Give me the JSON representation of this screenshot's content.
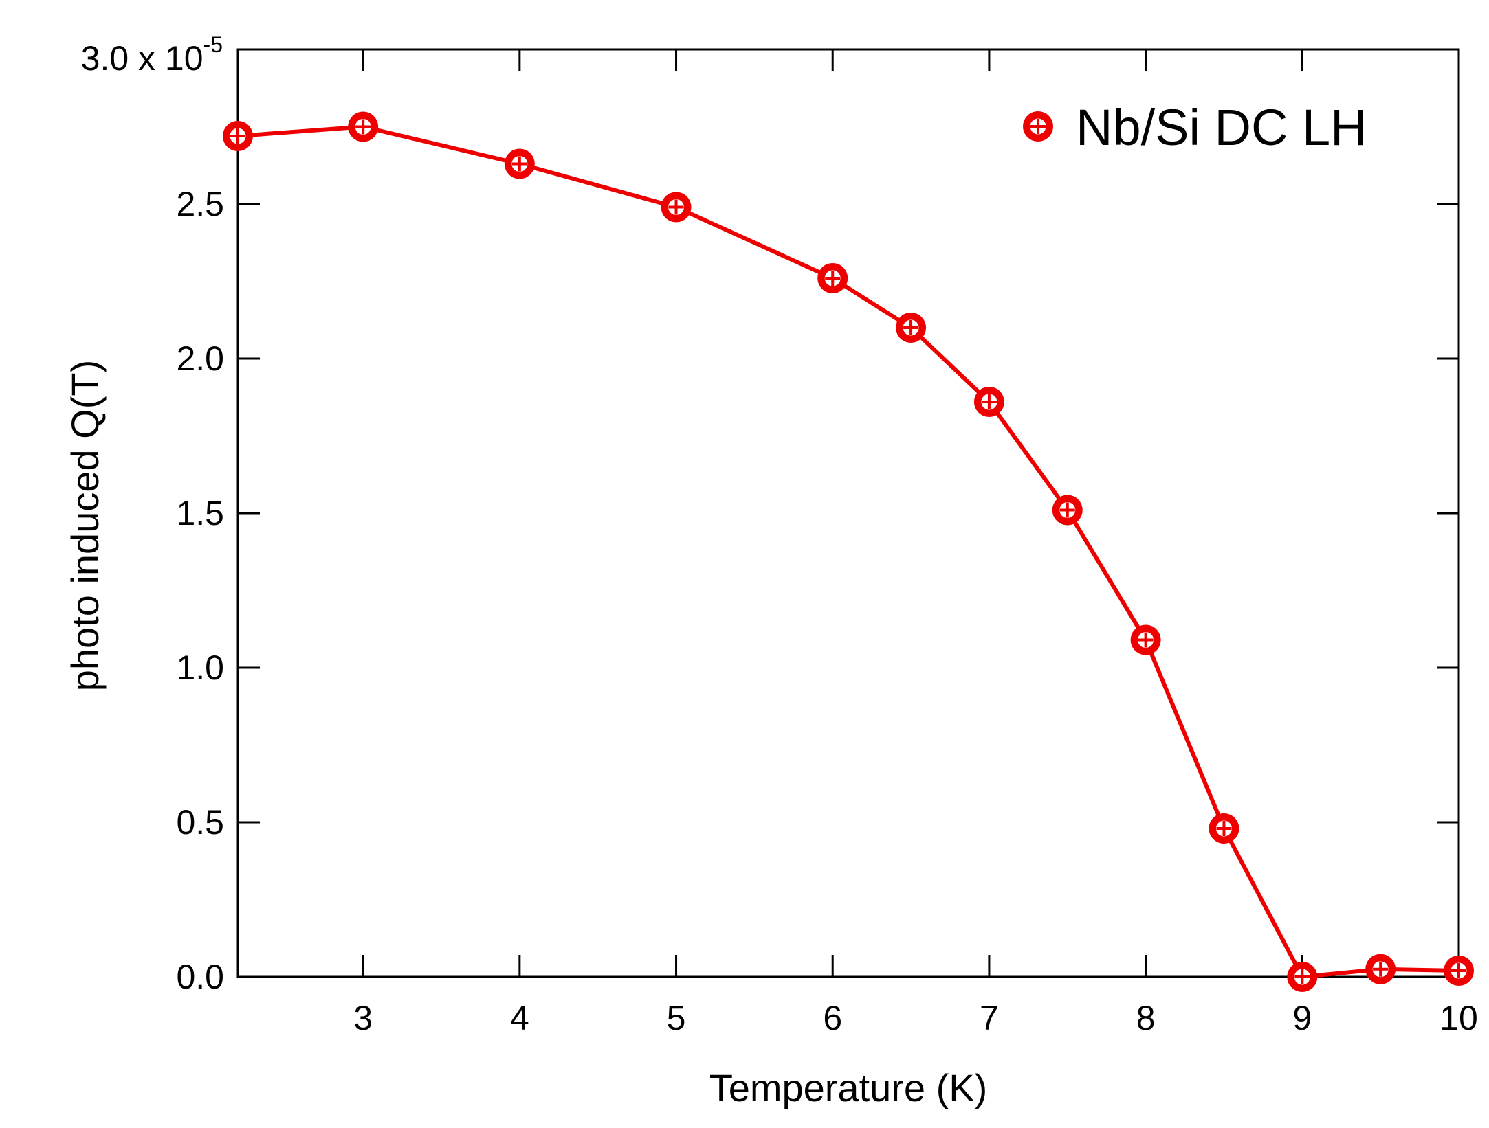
{
  "chart_data": {
    "type": "line",
    "title": "",
    "xlabel": "Temperature (K)",
    "ylabel": "photo induced Q(T)",
    "xlim": [
      2.2,
      10.0
    ],
    "ylim": [
      0.0,
      3.0
    ],
    "y_scale_label": {
      "base": "3.0 x 10",
      "exponent": "-5"
    },
    "x_ticks": [
      3,
      4,
      5,
      6,
      7,
      8,
      9,
      10
    ],
    "y_ticks": [
      "0.0",
      "0.5",
      "1.0",
      "1.5",
      "2.0",
      "2.5"
    ],
    "grid": false,
    "legend_position": "top-right",
    "series": [
      {
        "name": "Nb/Si DC LH",
        "color": "#ee0000",
        "marker": "circle-cross",
        "x": [
          2.2,
          3.0,
          4.0,
          5.0,
          6.0,
          6.5,
          7.0,
          7.5,
          8.0,
          8.5,
          9.0,
          9.5,
          10.0
        ],
        "y": [
          2.72,
          2.75,
          2.63,
          2.49,
          2.26,
          2.1,
          1.86,
          1.51,
          1.09,
          0.48,
          0.0,
          0.025,
          0.02
        ]
      }
    ]
  }
}
